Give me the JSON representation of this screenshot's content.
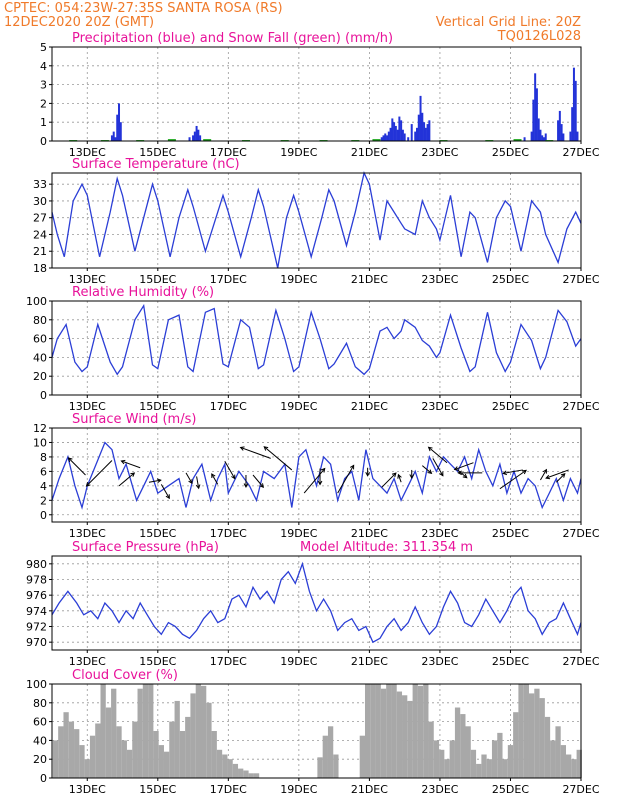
{
  "header": {
    "line1_left": "CPTEC:  054:23W-27:35S  SANTA ROSA (RS)",
    "line2_left": "12DEC2020 20Z (GMT)",
    "line2_right": "Vertical Grid Line: 20Z",
    "line3_right": "TQ0126L028"
  },
  "colors": {
    "precip": "#2333d8",
    "snow": "#1aa51a",
    "curve": "#2b3ed6",
    "cloud": "#a8a8a8",
    "title": "#e8129a",
    "header": "#f07a2a"
  },
  "chart_data": [
    {
      "type": "bar",
      "title": "Precipitation (blue) and Snow Fall (green) (mm/h)",
      "x_range": [
        12.0,
        27.0
      ],
      "ylim": [
        0,
        5
      ],
      "yticks": [
        0,
        1,
        2,
        3,
        4,
        5
      ],
      "xtick_labels": [
        "13DEC",
        "15DEC",
        "17DEC",
        "19DEC",
        "21DEC",
        "23DEC",
        "25DEC",
        "27DEC"
      ],
      "xtick_positions": [
        13,
        15,
        17,
        19,
        21,
        23,
        25,
        27
      ],
      "grid": true,
      "series": [
        {
          "name": "Precipitation",
          "x": [
            13.7,
            13.75,
            13.8,
            13.85,
            13.9,
            13.95,
            15.9,
            16.0,
            16.05,
            16.1,
            16.15,
            16.2,
            21.35,
            21.4,
            21.45,
            21.5,
            21.55,
            21.6,
            21.65,
            21.7,
            21.75,
            21.8,
            21.85,
            21.9,
            21.95,
            22.0,
            22.1,
            22.2,
            22.3,
            22.35,
            22.4,
            22.45,
            22.5,
            22.55,
            22.6,
            22.65,
            22.7,
            25.4,
            25.6,
            25.65,
            25.7,
            25.75,
            25.8,
            25.85,
            25.9,
            25.95,
            26.0,
            26.35,
            26.4,
            26.45,
            26.5,
            26.7,
            26.75,
            26.8,
            26.85,
            26.9
          ],
          "values": [
            0.3,
            0.5,
            0.2,
            1.4,
            2.0,
            1.0,
            0.2,
            0.3,
            0.5,
            0.8,
            0.6,
            0.3,
            0.2,
            0.3,
            0.4,
            0.3,
            0.5,
            0.7,
            1.2,
            1.0,
            0.8,
            0.6,
            1.3,
            1.1,
            0.6,
            0.4,
            0.2,
            0.9,
            0.5,
            0.7,
            1.4,
            2.4,
            1.5,
            1.0,
            0.7,
            0.9,
            1.1,
            0.2,
            0.5,
            2.2,
            3.6,
            2.8,
            1.2,
            0.6,
            0.3,
            0.2,
            0.4,
            1.1,
            1.6,
            0.9,
            0.4,
            0.5,
            1.8,
            3.9,
            3.2,
            0.5
          ]
        },
        {
          "name": "Snow Fall",
          "x": [
            12.6,
            13.5,
            14.5,
            15.4,
            16.4,
            17.5,
            18.6,
            19.7,
            20.6,
            21.2,
            23.1,
            24.4,
            25.2,
            26.1
          ],
          "values": [
            0.05,
            0.05,
            0.05,
            0.1,
            0.1,
            0.05,
            0.05,
            0.05,
            0.05,
            0.1,
            0.05,
            0.05,
            0.1,
            0.05
          ]
        }
      ]
    },
    {
      "type": "line",
      "title": "Surface Temperature (nC)",
      "x_range": [
        12.0,
        27.0
      ],
      "ylim": [
        18,
        35
      ],
      "yticks": [
        18,
        21,
        24,
        27,
        30,
        33
      ],
      "xtick_labels": [
        "13DEC",
        "15DEC",
        "17DEC",
        "19DEC",
        "21DEC",
        "23DEC",
        "25DEC",
        "27DEC"
      ],
      "xtick_positions": [
        13,
        15,
        17,
        19,
        21,
        23,
        25,
        27
      ],
      "grid": true,
      "x": [
        12.0,
        12.15,
        12.35,
        12.6,
        12.85,
        13.0,
        13.35,
        13.65,
        13.85,
        14.0,
        14.35,
        14.6,
        14.85,
        15.0,
        15.35,
        15.6,
        15.85,
        16.0,
        16.35,
        16.6,
        16.85,
        17.0,
        17.35,
        17.65,
        17.85,
        18.0,
        18.4,
        18.65,
        18.85,
        19.0,
        19.35,
        19.65,
        19.85,
        20.0,
        20.35,
        20.6,
        20.85,
        21.0,
        21.3,
        21.5,
        21.7,
        21.9,
        22.0,
        22.3,
        22.5,
        22.7,
        22.9,
        23.0,
        23.3,
        23.6,
        23.85,
        24.0,
        24.35,
        24.6,
        24.85,
        25.0,
        25.3,
        25.6,
        25.85,
        26.0,
        26.35,
        26.6,
        26.85,
        27.0
      ],
      "values": [
        28,
        24,
        20,
        30,
        33,
        31,
        20,
        28,
        34,
        31,
        21,
        27,
        33,
        30,
        20,
        27,
        32,
        29,
        21,
        26,
        31,
        28,
        20,
        27,
        32,
        29,
        18,
        27,
        31,
        28,
        20,
        27,
        32,
        30,
        22,
        28,
        35,
        33,
        23,
        30,
        28,
        26,
        25,
        24,
        30,
        27,
        25,
        23,
        31,
        20,
        28,
        27,
        19,
        27,
        30,
        29,
        21,
        30,
        28,
        24,
        19,
        25,
        28,
        26
      ]
    },
    {
      "type": "line",
      "title": "Relative Humidity (%)",
      "x_range": [
        12.0,
        27.0
      ],
      "ylim": [
        0,
        100
      ],
      "yticks": [
        0,
        20,
        40,
        60,
        80,
        100
      ],
      "xtick_labels": [
        "13DEC",
        "15DEC",
        "17DEC",
        "19DEC",
        "21DEC",
        "23DEC",
        "25DEC",
        "27DEC"
      ],
      "xtick_positions": [
        13,
        15,
        17,
        19,
        21,
        23,
        25,
        27
      ],
      "grid": true,
      "x": [
        12.0,
        12.15,
        12.4,
        12.65,
        12.85,
        13.0,
        13.3,
        13.65,
        13.85,
        14.0,
        14.35,
        14.6,
        14.85,
        15.0,
        15.3,
        15.6,
        15.85,
        16.0,
        16.35,
        16.6,
        16.85,
        17.0,
        17.35,
        17.6,
        17.85,
        18.0,
        18.35,
        18.6,
        18.85,
        19.0,
        19.35,
        19.6,
        19.85,
        20.0,
        20.35,
        20.6,
        20.85,
        21.0,
        21.3,
        21.5,
        21.7,
        21.9,
        22.0,
        22.3,
        22.5,
        22.7,
        22.9,
        23.0,
        23.3,
        23.6,
        23.85,
        24.0,
        24.35,
        24.6,
        24.85,
        25.0,
        25.3,
        25.6,
        25.85,
        26.0,
        26.35,
        26.6,
        26.85,
        27.0
      ],
      "values": [
        40,
        60,
        75,
        35,
        25,
        30,
        75,
        35,
        22,
        30,
        80,
        95,
        32,
        28,
        80,
        85,
        30,
        25,
        88,
        92,
        33,
        30,
        80,
        72,
        28,
        32,
        90,
        60,
        25,
        30,
        88,
        60,
        28,
        33,
        55,
        30,
        22,
        28,
        68,
        72,
        60,
        68,
        80,
        72,
        58,
        52,
        40,
        45,
        85,
        50,
        25,
        30,
        88,
        45,
        25,
        35,
        75,
        58,
        28,
        40,
        90,
        78,
        52,
        60
      ]
    },
    {
      "type": "line",
      "title": "Surface Wind (m/s)",
      "x_range": [
        12.0,
        27.0
      ],
      "ylim": [
        -1,
        12
      ],
      "yticks": [
        0,
        2,
        4,
        6,
        8,
        10,
        12
      ],
      "xtick_labels": [
        "13DEC",
        "15DEC",
        "17DEC",
        "19DEC",
        "21DEC",
        "23DEC",
        "25DEC",
        "27DEC"
      ],
      "xtick_positions": [
        13,
        15,
        17,
        19,
        21,
        23,
        25,
        27
      ],
      "grid": true,
      "x": [
        12.0,
        12.2,
        12.45,
        12.65,
        12.85,
        13.0,
        13.25,
        13.5,
        13.7,
        13.9,
        14.1,
        14.4,
        14.6,
        14.8,
        15.0,
        15.3,
        15.6,
        15.8,
        16.0,
        16.25,
        16.5,
        16.7,
        16.9,
        17.0,
        17.3,
        17.6,
        17.8,
        18.0,
        18.3,
        18.6,
        18.8,
        19.0,
        19.2,
        19.5,
        19.7,
        19.9,
        20.1,
        20.3,
        20.5,
        20.7,
        20.9,
        21.1,
        21.3,
        21.5,
        21.7,
        21.9,
        22.1,
        22.3,
        22.5,
        22.7,
        22.9,
        23.1,
        23.3,
        23.5,
        23.7,
        23.9,
        24.1,
        24.3,
        24.5,
        24.7,
        24.9,
        25.1,
        25.3,
        25.5,
        25.7,
        25.9,
        26.1,
        26.3,
        26.5,
        26.7,
        26.9,
        27.0
      ],
      "values": [
        2,
        5,
        8,
        4,
        1,
        4,
        7,
        10,
        9,
        5,
        7,
        2,
        4,
        6,
        3,
        4,
        5,
        1,
        5,
        7,
        2,
        5,
        7,
        3,
        6,
        4,
        2,
        6,
        5,
        7,
        1,
        8,
        9,
        4,
        8,
        7,
        2,
        5,
        6,
        2,
        9,
        5,
        4,
        3,
        5,
        2,
        4,
        6,
        3,
        8,
        6,
        8,
        7,
        6,
        8,
        5,
        9,
        6,
        4,
        7,
        3,
        6,
        3,
        5,
        4,
        1,
        3,
        5,
        2,
        5,
        3,
        5
      ]
    },
    {
      "type": "line",
      "title": "Surface Pressure (hPa)",
      "annotation": "Model Altitude: 311.354  m",
      "x_range": [
        12.0,
        27.0
      ],
      "ylim": [
        969,
        981
      ],
      "yticks": [
        970,
        972,
        974,
        976,
        978,
        980
      ],
      "xtick_labels": [
        "13DEC",
        "15DEC",
        "17DEC",
        "19DEC",
        "21DEC",
        "23DEC",
        "25DEC",
        "27DEC"
      ],
      "xtick_positions": [
        13,
        15,
        17,
        19,
        21,
        23,
        25,
        27
      ],
      "grid": true,
      "x": [
        12.0,
        12.2,
        12.45,
        12.7,
        12.9,
        13.1,
        13.3,
        13.5,
        13.7,
        13.9,
        14.1,
        14.3,
        14.5,
        14.7,
        14.9,
        15.1,
        15.3,
        15.5,
        15.7,
        15.9,
        16.1,
        16.3,
        16.5,
        16.7,
        16.9,
        17.1,
        17.3,
        17.5,
        17.7,
        17.9,
        18.1,
        18.3,
        18.5,
        18.7,
        18.9,
        19.1,
        19.3,
        19.5,
        19.7,
        19.9,
        20.1,
        20.3,
        20.5,
        20.7,
        20.9,
        21.1,
        21.3,
        21.5,
        21.7,
        21.9,
        22.1,
        22.3,
        22.5,
        22.7,
        22.9,
        23.1,
        23.3,
        23.5,
        23.7,
        23.9,
        24.1,
        24.3,
        24.5,
        24.7,
        24.9,
        25.1,
        25.3,
        25.5,
        25.7,
        25.9,
        26.1,
        26.3,
        26.5,
        26.7,
        26.9,
        27.0
      ],
      "values": [
        973.5,
        975.0,
        976.5,
        975.0,
        973.5,
        974.0,
        973.0,
        975.0,
        974.0,
        972.5,
        974.0,
        973.0,
        975.0,
        973.5,
        972.0,
        971.0,
        972.5,
        972.0,
        971.0,
        970.5,
        971.5,
        973.0,
        974.0,
        972.5,
        973.0,
        975.5,
        976.0,
        974.5,
        977.0,
        975.5,
        976.5,
        975.0,
        978.0,
        979.0,
        977.5,
        980.0,
        976.5,
        974.0,
        975.5,
        974.0,
        971.5,
        972.5,
        973.0,
        971.5,
        972.0,
        970.0,
        970.5,
        972.0,
        973.0,
        971.5,
        972.5,
        974.5,
        972.5,
        971.0,
        972.0,
        974.5,
        976.5,
        975.0,
        972.5,
        972.0,
        973.5,
        975.5,
        974.0,
        972.5,
        974.0,
        976.0,
        977.0,
        974.0,
        973.0,
        971.0,
        972.5,
        973.0,
        975.0,
        973.0,
        971.0,
        972.5
      ]
    },
    {
      "type": "bar",
      "title": "Cloud Cover (%)",
      "x_range": [
        12.0,
        27.0
      ],
      "ylim": [
        0,
        100
      ],
      "yticks": [
        0,
        20,
        40,
        60,
        80,
        100
      ],
      "xtick_labels": [
        "13DEC",
        "15DEC",
        "17DEC",
        "19DEC",
        "21DEC",
        "23DEC",
        "25DEC",
        "27DEC"
      ],
      "xtick_positions": [
        13,
        15,
        17,
        19,
        21,
        23,
        25,
        27
      ],
      "grid": true,
      "x": [
        12.1,
        12.25,
        12.4,
        12.55,
        12.7,
        12.85,
        13.0,
        13.15,
        13.3,
        13.45,
        13.6,
        13.75,
        13.9,
        14.05,
        14.2,
        14.35,
        14.5,
        14.65,
        14.8,
        14.95,
        15.1,
        15.25,
        15.4,
        15.55,
        15.7,
        15.85,
        16.0,
        16.15,
        16.3,
        16.45,
        16.6,
        16.75,
        16.9,
        17.05,
        17.2,
        17.35,
        17.5,
        17.65,
        17.8,
        17.95,
        18.1,
        18.25,
        18.4,
        18.55,
        18.7,
        18.85,
        19.0,
        19.15,
        19.3,
        19.45,
        19.6,
        19.75,
        19.9,
        20.05,
        20.2,
        20.35,
        20.5,
        20.65,
        20.8,
        20.95,
        21.1,
        21.25,
        21.4,
        21.55,
        21.7,
        21.85,
        22.0,
        22.15,
        22.3,
        22.45,
        22.6,
        22.75,
        22.9,
        23.05,
        23.2,
        23.35,
        23.5,
        23.65,
        23.8,
        23.95,
        24.1,
        24.25,
        24.4,
        24.55,
        24.7,
        24.85,
        25.0,
        25.15,
        25.3,
        25.45,
        25.6,
        25.75,
        25.9,
        26.05,
        26.2,
        26.35,
        26.5,
        26.65,
        26.8,
        26.95
      ],
      "values": [
        40,
        55,
        70,
        60,
        52,
        35,
        20,
        45,
        58,
        100,
        75,
        95,
        55,
        40,
        30,
        60,
        95,
        100,
        100,
        50,
        35,
        28,
        60,
        82,
        50,
        65,
        90,
        100,
        98,
        80,
        50,
        30,
        25,
        20,
        15,
        10,
        8,
        5,
        5,
        0,
        0,
        0,
        0,
        0,
        0,
        0,
        0,
        0,
        0,
        0,
        22,
        45,
        55,
        25,
        0,
        0,
        0,
        0,
        45,
        100,
        100,
        100,
        95,
        100,
        100,
        92,
        88,
        82,
        100,
        98,
        100,
        60,
        40,
        30,
        20,
        40,
        75,
        68,
        55,
        30,
        15,
        25,
        20,
        40,
        48,
        20,
        35,
        70,
        100,
        100,
        90,
        95,
        85,
        65,
        40,
        55,
        35,
        25,
        20,
        30
      ]
    }
  ],
  "wind_vectors": [
    {
      "x": 12.95,
      "y": 5.5,
      "angle": 135,
      "len": 6
    },
    {
      "x": 13.7,
      "y": 7.5,
      "angle": 225,
      "len": 9
    },
    {
      "x": 13.9,
      "y": 4.0,
      "angle": 40,
      "len": 5
    },
    {
      "x": 14.5,
      "y": 6.5,
      "angle": 160,
      "len": 5
    },
    {
      "x": 14.75,
      "y": 4.5,
      "angle": 10,
      "len": 3
    },
    {
      "x": 15.1,
      "y": 4.2,
      "angle": 300,
      "len": 4
    },
    {
      "x": 15.8,
      "y": 5.8,
      "angle": 300,
      "len": 3
    },
    {
      "x": 16.1,
      "y": 5.3,
      "angle": 280,
      "len": 3
    },
    {
      "x": 16.7,
      "y": 4.2,
      "angle": 120,
      "len": 3
    },
    {
      "x": 16.9,
      "y": 7.4,
      "angle": 300,
      "len": 5
    },
    {
      "x": 17.5,
      "y": 5.5,
      "angle": 270,
      "len": 3
    },
    {
      "x": 17.7,
      "y": 5.5,
      "angle": 310,
      "len": 4
    },
    {
      "x": 18.2,
      "y": 7.8,
      "angle": 160,
      "len": 8
    },
    {
      "x": 18.8,
      "y": 6.2,
      "angle": 140,
      "len": 9
    },
    {
      "x": 19.15,
      "y": 3.0,
      "angle": 50,
      "len": 8
    },
    {
      "x": 19.6,
      "y": 6.4,
      "angle": 270,
      "len": 4
    },
    {
      "x": 20.1,
      "y": 3.0,
      "angle": 60,
      "len": 8
    },
    {
      "x": 20.95,
      "y": 6.5,
      "angle": 270,
      "len": 2
    },
    {
      "x": 21.35,
      "y": 3.8,
      "angle": 45,
      "len": 5
    },
    {
      "x": 21.9,
      "y": 4.5,
      "angle": 110,
      "len": 2
    },
    {
      "x": 22.2,
      "y": 6.2,
      "angle": 270,
      "len": 2
    },
    {
      "x": 22.5,
      "y": 6.8,
      "angle": 320,
      "len": 3
    },
    {
      "x": 22.8,
      "y": 7.8,
      "angle": 300,
      "len": 5
    },
    {
      "x": 23.2,
      "y": 7.2,
      "angle": 140,
      "len": 6
    },
    {
      "x": 23.5,
      "y": 6.2,
      "angle": 320,
      "len": 3
    },
    {
      "x": 23.95,
      "y": 7.2,
      "angle": 200,
      "len": 5
    },
    {
      "x": 24.2,
      "y": 5.8,
      "angle": 180,
      "len": 6
    },
    {
      "x": 24.7,
      "y": 3.6,
      "angle": 35,
      "len": 8
    },
    {
      "x": 25.35,
      "y": 6.2,
      "angle": 190,
      "len": 5
    },
    {
      "x": 25.85,
      "y": 4.8,
      "angle": 60,
      "len": 3
    },
    {
      "x": 26.3,
      "y": 4.5,
      "angle": 45,
      "len": 3
    },
    {
      "x": 26.65,
      "y": 6.2,
      "angle": 200,
      "len": 6
    }
  ]
}
